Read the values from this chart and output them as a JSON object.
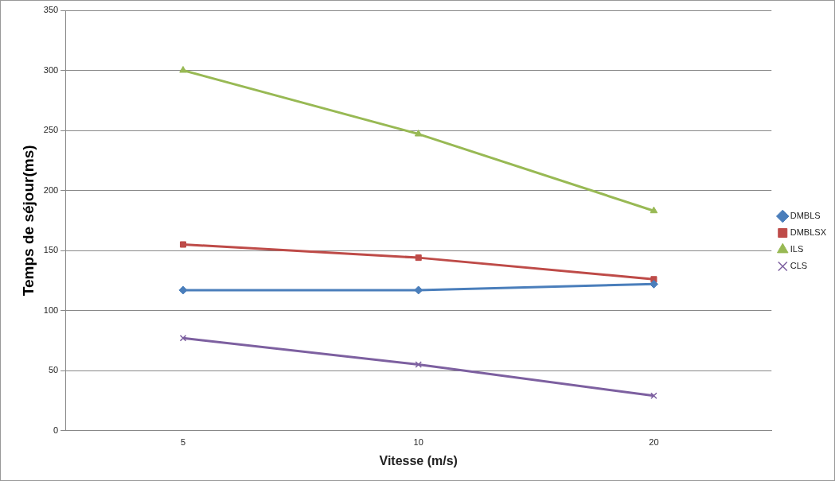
{
  "chart_data": {
    "type": "line",
    "xlabel": "Vitesse (m/s)",
    "ylabel": "Temps de séjour(ms)",
    "categories": [
      "5",
      "10",
      "20"
    ],
    "series": [
      {
        "name": "DMBLS",
        "color": "#4a7ebb",
        "marker": "diamond",
        "values": [
          117,
          117,
          122
        ]
      },
      {
        "name": "DMBLSX",
        "color": "#be4b48",
        "marker": "square",
        "values": [
          155,
          144,
          126
        ]
      },
      {
        "name": "ILS",
        "color": "#98b954",
        "marker": "triangle",
        "values": [
          300,
          247,
          183
        ]
      },
      {
        "name": "CLS",
        "color": "#7d60a0",
        "marker": "cross",
        "values": [
          77,
          55,
          29
        ]
      }
    ],
    "ylim": [
      0,
      350
    ],
    "yticks": [
      0,
      50,
      100,
      150,
      200,
      250,
      300,
      350
    ],
    "grid": "y",
    "legend": "right",
    "line_style": "solid"
  }
}
